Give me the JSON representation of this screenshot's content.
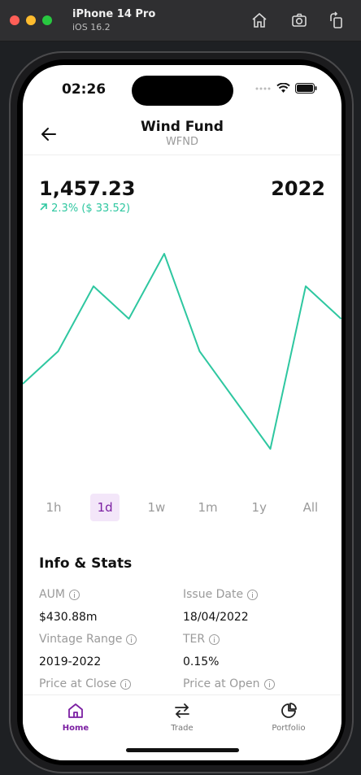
{
  "simulator": {
    "device": "iPhone 14 Pro",
    "os": "iOS 16.2",
    "buttons": [
      "home-icon",
      "screenshot-icon",
      "rotate-icon"
    ]
  },
  "status_bar": {
    "time": "02:26",
    "icons": [
      "signal-icon",
      "wifi-icon",
      "battery-icon"
    ]
  },
  "header": {
    "title": "Wind Fund",
    "ticker": "WFND",
    "back_icon": "arrow-left-icon"
  },
  "summary": {
    "price": "1,457.23",
    "change": "2.3% ($ 33.52)",
    "change_icon": "arrow-up-right-icon",
    "year": "2022",
    "accent": "#2ec7a0"
  },
  "chart_data": {
    "type": "line",
    "x": [
      0,
      1,
      2,
      3,
      4,
      5,
      6,
      7,
      8,
      9
    ],
    "values": [
      3.2,
      4.2,
      6.2,
      5.2,
      7.2,
      4.2,
      2.7,
      1.2,
      6.2,
      5.2
    ],
    "ylim": [
      0,
      8
    ],
    "color": "#2ec7a0",
    "grid": false
  },
  "ranges": {
    "items": [
      "1h",
      "1d",
      "1w",
      "1m",
      "1y",
      "All"
    ],
    "selected": "1d"
  },
  "info": {
    "title": "Info & Stats",
    "aum_label": "AUM",
    "aum_value": "$430.88m",
    "issue_label": "Issue Date",
    "issue_value": "18/04/2022",
    "vintage_label": "Vintage Range",
    "vintage_value": "2019-2022",
    "ter_label": "TER",
    "ter_value": "0.15%",
    "close_label": "Price at Close",
    "open_label": "Price at Open"
  },
  "tabs": [
    {
      "label": "Home",
      "icon": "home-icon",
      "active": true
    },
    {
      "label": "Trade",
      "icon": "swap-arrows-icon",
      "active": false
    },
    {
      "label": "Portfolio",
      "icon": "pie-chart-icon",
      "active": false
    }
  ],
  "colors": {
    "active_tab": "#7b1fa2",
    "range_active_bg": "#f3e6f9"
  }
}
